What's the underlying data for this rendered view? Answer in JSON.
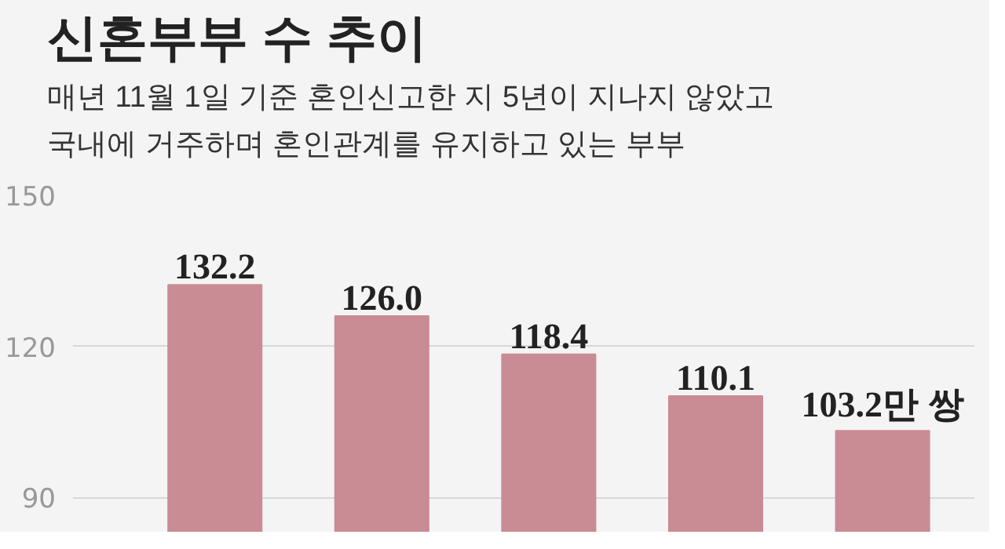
{
  "chart_data": {
    "type": "bar",
    "title": "신혼부부 수 추이",
    "subtitle": "매년 11월 1일 기준 혼인신고한 지 5년이 지나지 않았고\n국내에 거주하며 혼인관계를 유지하고 있는 부부",
    "categories": [
      null,
      null,
      null,
      null,
      null
    ],
    "values": [
      132.2,
      126.0,
      118.4,
      110.1,
      103.2
    ],
    "value_labels": [
      "132.2",
      "126.0",
      "118.4",
      "110.1",
      "103.2만 쌍"
    ],
    "color": "#c98b94",
    "ylim": [
      83,
      150
    ],
    "yticks": [
      90,
      120,
      150
    ],
    "grid": "y",
    "tick_labels": "y"
  }
}
